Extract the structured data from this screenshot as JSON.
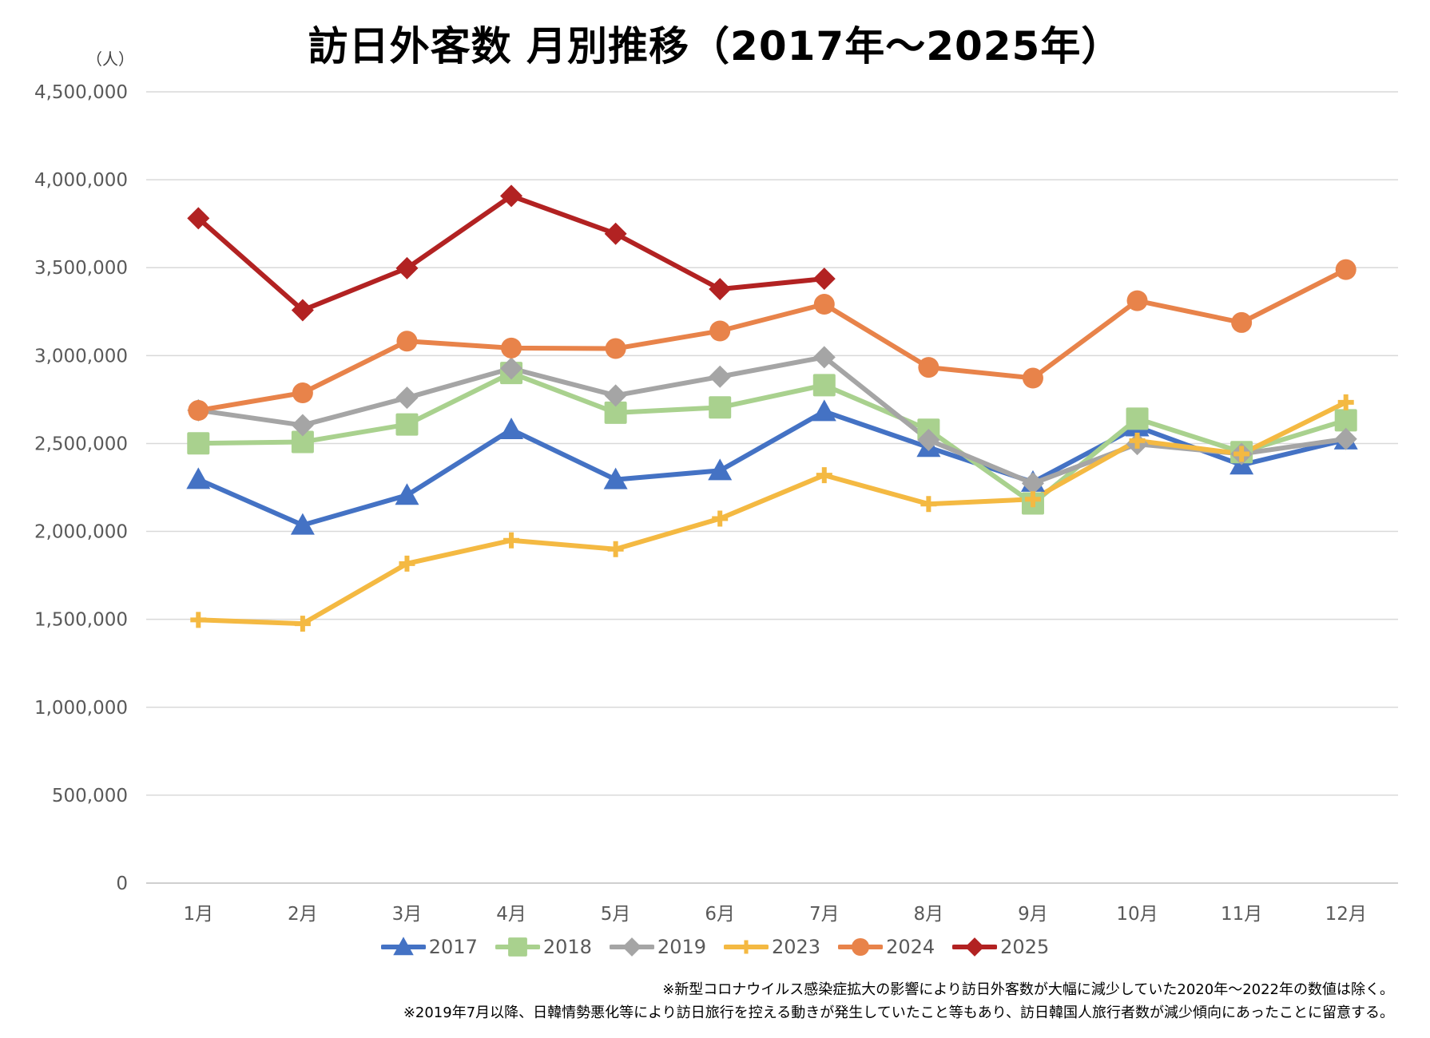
{
  "chart_data": {
    "type": "line",
    "title": "訪日外客数 月別推移（2017年～2025年）",
    "y_unit": "（人）",
    "xlabel": "",
    "ylabel": "",
    "ylim": [
      0,
      4500000
    ],
    "y_ticks": [
      0,
      500000,
      1000000,
      1500000,
      2000000,
      2500000,
      3000000,
      3500000,
      4000000,
      4500000
    ],
    "y_tick_labels": [
      "0",
      "500,000",
      "1,000,000",
      "1,500,000",
      "2,000,000",
      "2,500,000",
      "3,000,000",
      "3,500,000",
      "4,000,000",
      "4,500,000"
    ],
    "categories": [
      "1月",
      "2月",
      "3月",
      "4月",
      "5月",
      "6月",
      "7月",
      "8月",
      "9月",
      "10月",
      "11月",
      "12月"
    ],
    "grid": true,
    "legend_position": "bottom",
    "series": [
      {
        "name": "2017",
        "color": "#4472C4",
        "marker": "triangle",
        "values": [
          2296000,
          2036000,
          2206000,
          2579000,
          2295000,
          2346000,
          2682000,
          2478000,
          2280000,
          2595000,
          2378000,
          2521000
        ]
      },
      {
        "name": "2018",
        "color": "#A9D18E",
        "marker": "square",
        "values": [
          2501000,
          2509000,
          2608000,
          2901000,
          2675000,
          2705000,
          2832000,
          2578000,
          2159000,
          2641000,
          2451000,
          2632000
        ]
      },
      {
        "name": "2019",
        "color": "#A5A5A5",
        "marker": "diamond",
        "values": [
          2689000,
          2604000,
          2760000,
          2927000,
          2773000,
          2880000,
          2991000,
          2520000,
          2273000,
          2497000,
          2441000,
          2526000
        ]
      },
      {
        "name": "2023",
        "color": "#F4B942",
        "marker": "plus",
        "values": [
          1497000,
          1475000,
          1817000,
          1949000,
          1899000,
          2073000,
          2320000,
          2156000,
          2183000,
          2516000,
          2441000,
          2734000
        ]
      },
      {
        "name": "2024",
        "color": "#E8834A",
        "marker": "circle",
        "values": [
          2688000,
          2788000,
          3082000,
          3043000,
          3040000,
          3140000,
          3292000,
          2933000,
          2872000,
          3312000,
          3188000,
          3489000
        ]
      },
      {
        "name": "2025",
        "color": "#B22222",
        "marker": "diamond",
        "values": [
          3781000,
          3258000,
          3497000,
          3908000,
          3693000,
          3378000,
          3437000,
          null,
          null,
          null,
          null,
          null
        ]
      }
    ],
    "footnotes": [
      "※新型コロナウイルス感染症拡大の影響により訪日外客数が大幅に減少していた2020年～2022年の数値は除く。",
      "※2019年7月以降、日韓情勢悪化等により訪日旅行を控える動きが発生していたこと等もあり、訪日韓国人旅行者数が減少傾向にあったことに留意する。"
    ]
  }
}
